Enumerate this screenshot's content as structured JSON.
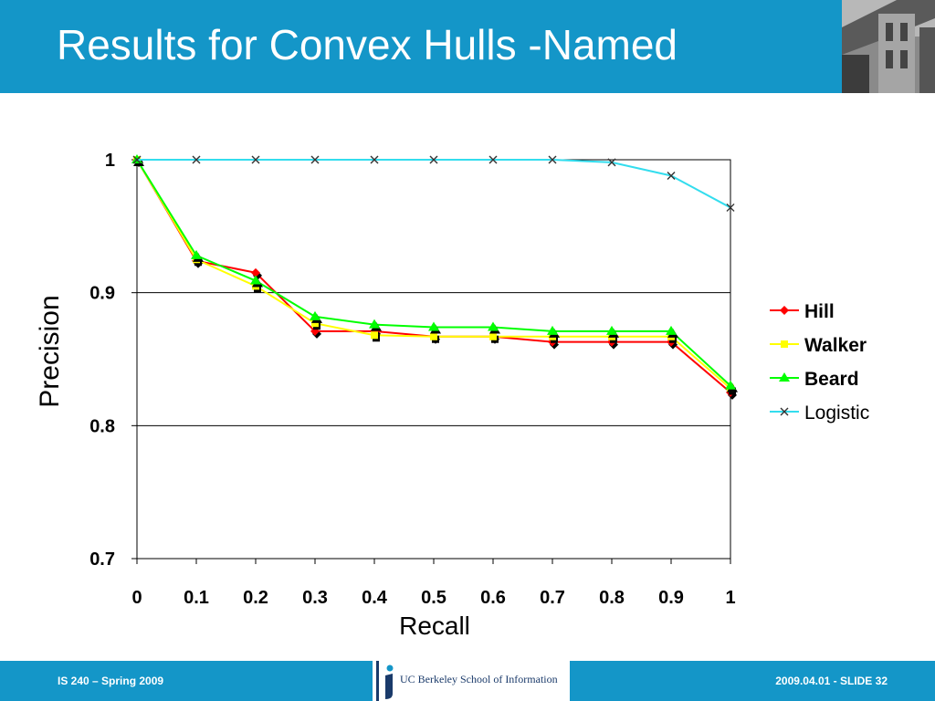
{
  "slide": {
    "title": "Results for Convex Hulls -Named",
    "footer_left": "IS 240 – Spring 2009",
    "footer_right": "2009.04.01 - SLIDE 32",
    "logo_text": "UC Berkeley School of Information"
  },
  "colors": {
    "header": "#1496c8",
    "hill": "#ff0000",
    "walker": "#ffff00",
    "beard": "#00ff00",
    "logistic": "#33ddee"
  },
  "chart_data": {
    "type": "line",
    "xlabel": "Recall",
    "ylabel": "Precision",
    "x": [
      0,
      0.1,
      0.2,
      0.3,
      0.4,
      0.5,
      0.6,
      0.7,
      0.8,
      0.9,
      1
    ],
    "x_tick_labels": [
      "0",
      "0.1",
      "0.2",
      "0.3",
      "0.4",
      "0.5",
      "0.6",
      "0.7",
      "0.8",
      "0.9",
      "1"
    ],
    "y_tick_values": [
      0.7,
      0.8,
      0.9,
      1
    ],
    "y_tick_labels": [
      "0.7",
      "0.8",
      "0.9",
      "1"
    ],
    "xlim": [
      0,
      1
    ],
    "ylim": [
      0.7,
      1
    ],
    "grid": "horizontal",
    "legend_position": "right",
    "series": [
      {
        "name": "Hill",
        "marker": "diamond",
        "color": "#ff0000",
        "values": [
          1.0,
          0.924,
          0.915,
          0.871,
          0.871,
          0.867,
          0.867,
          0.863,
          0.863,
          0.863,
          0.825
        ]
      },
      {
        "name": "Walker",
        "marker": "square",
        "color": "#ffff00",
        "values": [
          1.0,
          0.925,
          0.905,
          0.877,
          0.868,
          0.867,
          0.867,
          0.867,
          0.867,
          0.867,
          0.828
        ]
      },
      {
        "name": "Beard",
        "marker": "triangle",
        "color": "#00ff00",
        "values": [
          1.0,
          0.928,
          0.909,
          0.882,
          0.876,
          0.874,
          0.874,
          0.871,
          0.871,
          0.871,
          0.83
        ]
      },
      {
        "name": "Logistic",
        "marker": "x",
        "color": "#33ddee",
        "values": [
          1.0,
          1.0,
          1.0,
          1.0,
          1.0,
          1.0,
          1.0,
          1.0,
          0.998,
          0.988,
          0.964
        ]
      }
    ]
  }
}
